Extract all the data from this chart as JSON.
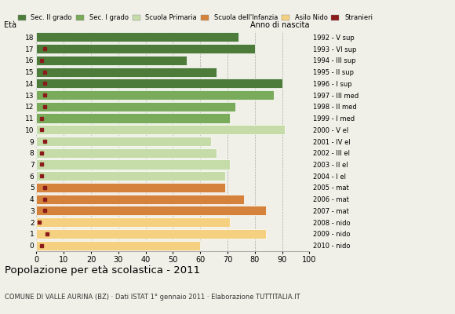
{
  "ages": [
    18,
    17,
    16,
    15,
    14,
    13,
    12,
    11,
    10,
    9,
    8,
    7,
    6,
    5,
    4,
    3,
    2,
    1,
    0
  ],
  "years": [
    "1992 - V sup",
    "1993 - VI sup",
    "1994 - III sup",
    "1995 - II sup",
    "1996 - I sup",
    "1997 - III med",
    "1998 - II med",
    "1999 - I med",
    "2000 - V el",
    "2001 - IV el",
    "2002 - III el",
    "2003 - II el",
    "2004 - I el",
    "2005 - mat",
    "2006 - mat",
    "2007 - mat",
    "2008 - nido",
    "2009 - nido",
    "2010 - nido"
  ],
  "values": [
    74,
    80,
    55,
    66,
    90,
    87,
    73,
    71,
    91,
    64,
    66,
    71,
    69,
    69,
    76,
    84,
    71,
    84,
    60
  ],
  "stranieri": [
    0,
    3,
    2,
    3,
    3,
    3,
    3,
    2,
    2,
    3,
    2,
    2,
    2,
    3,
    3,
    3,
    1,
    4,
    2
  ],
  "categories": {
    "sec2": [
      14,
      15,
      16,
      17,
      18
    ],
    "sec1": [
      11,
      12,
      13
    ],
    "primaria": [
      6,
      7,
      8,
      9,
      10
    ],
    "infanzia": [
      3,
      4,
      5
    ],
    "nido": [
      0,
      1,
      2
    ]
  },
  "colors": {
    "sec2": "#4d7c3a",
    "sec1": "#7aab5a",
    "primaria": "#c5dba8",
    "infanzia": "#d4823c",
    "nido": "#f5d080",
    "stranieri": "#8b1a1a"
  },
  "legend_labels": [
    "Sec. II grado",
    "Sec. I grado",
    "Scuola Primaria",
    "Scuola dell'Infanzia",
    "Asilo Nido",
    "Stranieri"
  ],
  "title": "Popolazione per età scolastica - 2011",
  "subtitle": "COMUNE DI VALLE AURINA (BZ) · Dati ISTAT 1° gennaio 2011 · Elaborazione TUTTITALIA.IT",
  "ylabel_left": "Età",
  "ylabel_right": "Anno di nascita",
  "background_color": "#f0f0e8"
}
